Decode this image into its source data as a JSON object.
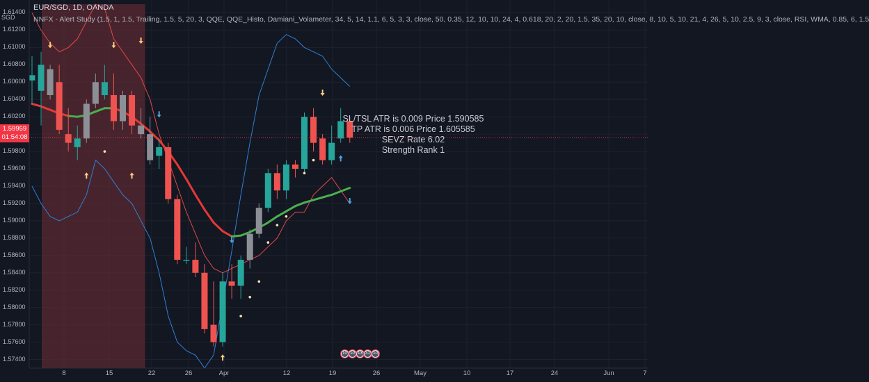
{
  "header": {
    "symbol_line": "EUR/SGD, 1D, OANDA",
    "indicator_line": "NNFX - Alert Study (1.5, 1, 1.5, Trailing, 1.5, 5, 20, 3, QQE, QQE_Histo, Damiani_Volameter, 34, 5, 14, 1.1, 6, 5, 3, 3, close, 50, 0.35, 12, 10, 10, 24, 4, 0.618, 20, 2, 20, 1.5, 35, 20, 10, close, 8, 10, 5, 10, 21, 4, 26, 5, 10, 2.5, 9, 3, close, RSI, WMA, 0.85, 6, 1.5"
  },
  "price_axis": {
    "currency": "SGD",
    "labels": [
      "1.61400",
      "1.61200",
      "1.61000",
      "1.60800",
      "1.60600",
      "1.60400",
      "1.60200",
      "1.60000",
      "1.59800",
      "1.59600",
      "1.59400",
      "1.59200",
      "1.59000",
      "1.58800",
      "1.58600",
      "1.58400",
      "1.58200",
      "1.58000",
      "1.57800",
      "1.57600",
      "1.57400"
    ],
    "current_price": "1.59959",
    "countdown": "01:54:08"
  },
  "time_axis": {
    "labels": [
      "8",
      "15",
      "22",
      "26",
      "Apr",
      "12",
      "19",
      "26",
      "May",
      "10",
      "17",
      "24",
      "Jun",
      "7"
    ]
  },
  "annotation": {
    "line1": "SL/TSL ATR is 0.009  Price 1.590585",
    "line2": "TP ATR is 0.006  Price 1.605585",
    "line3": "SEVZ Rate 6.02",
    "line4": "Strength Rank 1"
  },
  "events": [
    "10",
    "10",
    "13",
    "31",
    "10"
  ],
  "colors": {
    "background": "#131722",
    "bull": "#26a69a",
    "bear": "#ef5350",
    "neutral": "#8c8f96",
    "baseline_up": "#4caf50",
    "baseline_down": "#e53935",
    "band_upper": "#e04848",
    "band_lower": "#2f7fd4",
    "shade": "#5a2a31"
  },
  "chart_data": {
    "type": "candlestick",
    "ylim": [
      1.573,
      1.615
    ],
    "candles": [
      {
        "o": 1.6068,
        "h": 1.609,
        "l": 1.6035,
        "c": 1.6062,
        "k": "g"
      },
      {
        "o": 1.608,
        "h": 1.6095,
        "l": 1.601,
        "c": 1.605,
        "k": "g"
      },
      {
        "o": 1.6075,
        "h": 1.608,
        "l": 1.604,
        "c": 1.6045,
        "k": "n"
      },
      {
        "o": 1.606,
        "h": 1.608,
        "l": 1.6,
        "c": 1.6005,
        "k": "r"
      },
      {
        "o": 1.6,
        "h": 1.603,
        "l": 1.598,
        "c": 1.599,
        "k": "r"
      },
      {
        "o": 1.5985,
        "h": 1.601,
        "l": 1.597,
        "c": 1.5995,
        "k": "g"
      },
      {
        "o": 1.5995,
        "h": 1.604,
        "l": 1.599,
        "c": 1.6035,
        "k": "n"
      },
      {
        "o": 1.6035,
        "h": 1.607,
        "l": 1.603,
        "c": 1.606,
        "k": "n"
      },
      {
        "o": 1.606,
        "h": 1.608,
        "l": 1.604,
        "c": 1.6045,
        "k": "g"
      },
      {
        "o": 1.6045,
        "h": 1.607,
        "l": 1.6005,
        "c": 1.6015,
        "k": "r"
      },
      {
        "o": 1.6015,
        "h": 1.605,
        "l": 1.6005,
        "c": 1.6045,
        "k": "n"
      },
      {
        "o": 1.6045,
        "h": 1.605,
        "l": 1.6,
        "c": 1.601,
        "k": "r"
      },
      {
        "o": 1.601,
        "h": 1.603,
        "l": 1.5995,
        "c": 1.6,
        "k": "n"
      },
      {
        "o": 1.6,
        "h": 1.602,
        "l": 1.5965,
        "c": 1.597,
        "k": "n"
      },
      {
        "o": 1.5975,
        "h": 1.5995,
        "l": 1.596,
        "c": 1.5985,
        "k": "g"
      },
      {
        "o": 1.5985,
        "h": 1.599,
        "l": 1.592,
        "c": 1.5925,
        "k": "r"
      },
      {
        "o": 1.5925,
        "h": 1.593,
        "l": 1.585,
        "c": 1.5855,
        "k": "r"
      },
      {
        "o": 1.5855,
        "h": 1.587,
        "l": 1.585,
        "c": 1.5855,
        "k": "g"
      },
      {
        "o": 1.5855,
        "h": 1.5875,
        "l": 1.5835,
        "c": 1.584,
        "k": "r"
      },
      {
        "o": 1.584,
        "h": 1.585,
        "l": 1.577,
        "c": 1.5775,
        "k": "r"
      },
      {
        "o": 1.578,
        "h": 1.583,
        "l": 1.5755,
        "c": 1.576,
        "k": "r"
      },
      {
        "o": 1.576,
        "h": 1.584,
        "l": 1.5755,
        "c": 1.583,
        "k": "g"
      },
      {
        "o": 1.583,
        "h": 1.585,
        "l": 1.581,
        "c": 1.5825,
        "k": "r"
      },
      {
        "o": 1.5825,
        "h": 1.586,
        "l": 1.581,
        "c": 1.5855,
        "k": "g"
      },
      {
        "o": 1.5855,
        "h": 1.589,
        "l": 1.5845,
        "c": 1.5885,
        "k": "n"
      },
      {
        "o": 1.5885,
        "h": 1.592,
        "l": 1.588,
        "c": 1.5915,
        "k": "n"
      },
      {
        "o": 1.5915,
        "h": 1.596,
        "l": 1.591,
        "c": 1.5955,
        "k": "g"
      },
      {
        "o": 1.5955,
        "h": 1.5965,
        "l": 1.5925,
        "c": 1.5935,
        "k": "r"
      },
      {
        "o": 1.5935,
        "h": 1.597,
        "l": 1.5925,
        "c": 1.5965,
        "k": "g"
      },
      {
        "o": 1.5965,
        "h": 1.597,
        "l": 1.595,
        "c": 1.596,
        "k": "r"
      },
      {
        "o": 1.596,
        "h": 1.6025,
        "l": 1.5955,
        "c": 1.602,
        "k": "g"
      },
      {
        "o": 1.602,
        "h": 1.603,
        "l": 1.598,
        "c": 1.599,
        "k": "r"
      },
      {
        "o": 1.5995,
        "h": 1.6,
        "l": 1.5965,
        "c": 1.597,
        "k": "r"
      },
      {
        "o": 1.597,
        "h": 1.601,
        "l": 1.5965,
        "c": 1.599,
        "k": "g"
      },
      {
        "o": 1.5995,
        "h": 1.603,
        "l": 1.599,
        "c": 1.6015,
        "k": "g"
      },
      {
        "o": 1.6015,
        "h": 1.602,
        "l": 1.599,
        "c": 1.5996,
        "k": "r"
      }
    ],
    "baseline": [
      1.6035,
      1.6032,
      1.6028,
      1.6024,
      1.6021,
      1.602,
      1.6022,
      1.6026,
      1.603,
      1.603,
      1.6026,
      1.602,
      1.6012,
      1.6003,
      1.5993,
      1.598,
      1.5965,
      1.5948,
      1.593,
      1.5913,
      1.5898,
      1.5888,
      1.5882,
      1.5883,
      1.5887,
      1.5892,
      1.5898,
      1.5905,
      1.5911,
      1.5917,
      1.5921,
      1.5924,
      1.5927,
      1.593,
      1.5934,
      1.5938
    ],
    "baseline_trend": [
      "u",
      "d",
      "d",
      "d",
      "d",
      "u",
      "u",
      "u",
      "u",
      "u",
      "d",
      "d",
      "d",
      "d",
      "d",
      "d",
      "d",
      "d",
      "d",
      "d",
      "d",
      "d",
      "d",
      "u",
      "u",
      "u",
      "u",
      "u",
      "u",
      "u",
      "u",
      "u",
      "u",
      "u",
      "u",
      "u"
    ],
    "upper_band": [
      1.614,
      1.612,
      1.6105,
      1.6095,
      1.61,
      1.611,
      1.613,
      1.615,
      1.6145,
      1.611,
      1.6095,
      1.608,
      1.6065,
      1.604,
      1.6,
      1.597,
      1.594,
      1.591,
      1.5885,
      1.586,
      1.5845,
      1.584,
      1.5845,
      1.585,
      1.5855,
      1.586,
      1.587,
      1.588,
      1.59,
      1.591,
      1.591,
      1.593,
      1.594,
      1.595,
      1.5935,
      1.592
    ],
    "lower_band": [
      1.594,
      1.592,
      1.5905,
      1.59,
      1.5905,
      1.591,
      1.593,
      1.597,
      1.596,
      1.5945,
      1.593,
      1.592,
      1.59,
      1.588,
      1.584,
      1.579,
      1.576,
      1.575,
      1.5745,
      1.573,
      1.5745,
      1.5805,
      1.5865,
      1.593,
      1.599,
      1.6045,
      1.6075,
      1.6105,
      1.6115,
      1.611,
      1.61,
      1.6095,
      1.609,
      1.6075,
      1.6065,
      1.6055
    ],
    "current_price_line": 1.59959,
    "shaded_range": {
      "from_index": 0,
      "to_index": 12
    }
  }
}
